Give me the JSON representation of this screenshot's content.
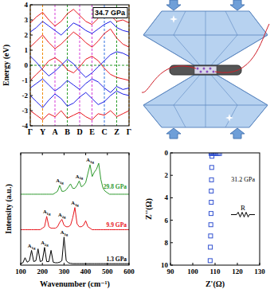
{
  "chart_data": [
    {
      "type": "line",
      "annotation": "34.7 GPa",
      "ylabel": "Energy (eV)",
      "x": [
        0,
        0.5,
        1,
        1.5,
        2,
        2.5,
        3,
        3.5,
        4,
        4.5,
        5,
        5.5,
        6,
        6.5,
        7,
        7.5,
        8
      ],
      "xlim": [
        0,
        8
      ],
      "xticks": [
        {
          "value": 0,
          "label": "Γ"
        },
        {
          "value": 1,
          "label": "Y"
        },
        {
          "value": 2,
          "label": "A"
        },
        {
          "value": 3,
          "label": "B"
        },
        {
          "value": 4,
          "label": "D"
        },
        {
          "value": 5,
          "label": "E"
        },
        {
          "value": 6,
          "label": "C"
        },
        {
          "value": 7,
          "label": "Z"
        },
        {
          "value": 8,
          "label": "Γ"
        }
      ],
      "ylim": [
        -4,
        4
      ],
      "yticks": [
        -4,
        -3,
        -2,
        -1,
        0,
        1,
        2,
        3,
        4
      ],
      "fermi_level": 0,
      "series": [
        {
          "color": "#e8141b",
          "values": [
            -3.0,
            -3.3,
            -3.6,
            -3.2,
            -3.4,
            -3.0,
            -3.5,
            -3.3,
            -3.1,
            -3.4,
            -3.6,
            -3.2,
            -3.3,
            -3.0,
            -3.4,
            -3.2,
            -3.0
          ]
        },
        {
          "color": "#e8141b",
          "values": [
            -1.0,
            -0.6,
            -0.2,
            0.3,
            0.5,
            0.2,
            -0.3,
            -0.5,
            -0.1,
            0.4,
            0.6,
            0.3,
            -0.2,
            -0.6,
            -0.8,
            -0.9,
            -1.0
          ]
        },
        {
          "color": "#e8141b",
          "values": [
            1.2,
            1.6,
            2.0,
            1.5,
            1.1,
            1.4,
            1.8,
            2.2,
            1.9,
            1.5,
            1.2,
            1.6,
            2.1,
            2.4,
            1.8,
            1.4,
            1.2
          ]
        },
        {
          "color": "#e8141b",
          "values": [
            2.8,
            3.2,
            3.5,
            3.0,
            2.6,
            2.9,
            3.4,
            3.7,
            3.3,
            2.9,
            2.7,
            3.1,
            3.6,
            3.3,
            2.9,
            3.0,
            2.8
          ]
        },
        {
          "color": "#1a1ae6",
          "values": [
            -2.0,
            -2.4,
            -2.8,
            -2.3,
            -1.9,
            -2.2,
            -2.7,
            -2.5,
            -2.1,
            -1.8,
            -2.2,
            -2.6,
            -2.4,
            -2.0,
            -1.7,
            -1.9,
            -2.0
          ]
        },
        {
          "color": "#1a1ae6",
          "values": [
            0.6,
            0.2,
            -0.3,
            -0.7,
            -0.4,
            0.0,
            0.4,
            0.1,
            -0.4,
            -0.8,
            -0.5,
            -0.1,
            0.3,
            0.7,
            0.9,
            0.8,
            0.6
          ]
        },
        {
          "color": "#1a1ae6",
          "values": [
            -1.5,
            -1.2,
            -0.9,
            -1.3,
            -1.7,
            -1.4,
            -1.0,
            -1.3,
            -1.6,
            -1.2,
            -0.9,
            -1.1,
            -1.5,
            -1.8,
            -1.4,
            -1.6,
            -1.5
          ]
        },
        {
          "color": "#1a1ae6",
          "values": [
            2.2,
            2.5,
            2.9,
            2.6,
            2.3,
            2.0,
            2.4,
            2.8,
            2.6,
            2.3,
            2.1,
            2.4,
            2.7,
            2.9,
            2.5,
            2.3,
            2.2
          ]
        }
      ]
    },
    {
      "type": "line",
      "xlabel": "Wavenumber (cm⁻¹)",
      "ylabel": "Intensity (a.u.)",
      "x": [
        100,
        110,
        120,
        130,
        140,
        150,
        160,
        170,
        180,
        190,
        200,
        210,
        220,
        230,
        240,
        250,
        260,
        270,
        280,
        290,
        300,
        310,
        320,
        330,
        340,
        350,
        360,
        370,
        380,
        390,
        400,
        410,
        420,
        430,
        440,
        450,
        460,
        470,
        480,
        490,
        500,
        510,
        520,
        530,
        540,
        550,
        560,
        570,
        580,
        590,
        600
      ],
      "xlim": [
        100,
        600
      ],
      "xticks": [
        100,
        200,
        300,
        400,
        500,
        600
      ],
      "ylim": [
        0,
        3.8
      ],
      "tick_labels": "x",
      "series": [
        {
          "name": "1.3 GPa",
          "color": "#000000",
          "values": [
            0.05,
            0.08,
            0.25,
            0.1,
            0.15,
            0.5,
            0.12,
            0.15,
            0.55,
            0.12,
            0.15,
            0.6,
            0.12,
            0.12,
            0.5,
            0.1,
            0.08,
            0.08,
            0.1,
            0.15,
            0.95,
            0.15,
            0.08,
            0.06,
            0.05,
            0.05,
            0.05,
            0.05,
            0.05,
            0.05,
            0.05,
            0.05,
            0.05,
            0.05,
            0.05,
            0.05,
            0.05,
            0.05,
            0.05,
            0.05,
            0.05,
            0.05,
            0.05,
            0.05,
            0.05,
            0.05,
            0.05,
            0.05,
            0.05,
            0.05,
            0.05
          ]
        },
        {
          "name": "9.9 GPa",
          "color": "#e8141b",
          "values": [
            1.2,
            1.2,
            1.2,
            1.2,
            1.2,
            1.2,
            1.2,
            1.2,
            1.2,
            1.2,
            1.25,
            1.3,
            1.65,
            1.3,
            1.25,
            1.25,
            1.25,
            1.3,
            1.45,
            1.55,
            1.35,
            1.3,
            1.3,
            1.35,
            1.6,
            1.95,
            1.4,
            1.3,
            1.3,
            1.35,
            1.5,
            1.3,
            1.25,
            1.2,
            1.2,
            1.2,
            1.2,
            1.2,
            1.2,
            1.2,
            1.2,
            1.2,
            1.2,
            1.2,
            1.2,
            1.2,
            1.2,
            1.2,
            1.2,
            1.2,
            1.2
          ]
        },
        {
          "name": "29.8 GPa",
          "color": "#2e9a2e",
          "values": [
            2.4,
            2.4,
            2.4,
            2.4,
            2.4,
            2.4,
            2.4,
            2.4,
            2.4,
            2.4,
            2.4,
            2.4,
            2.4,
            2.4,
            2.4,
            2.4,
            2.45,
            2.5,
            2.7,
            2.5,
            2.5,
            2.55,
            2.65,
            2.75,
            2.6,
            2.6,
            2.7,
            2.85,
            2.65,
            2.7,
            2.8,
            3.1,
            3.4,
            3.0,
            3.15,
            3.25,
            3.45,
            2.9,
            2.6,
            2.5,
            2.45,
            2.4,
            2.4,
            2.4,
            2.4,
            2.4,
            2.4,
            2.4,
            2.4,
            2.4,
            2.4
          ]
        }
      ],
      "annotations": [
        {
          "x": 150,
          "y": 0.6,
          "text": "A1g"
        },
        {
          "x": 210,
          "y": 0.7,
          "text": "A2g"
        },
        {
          "x": 300,
          "y": 1.05,
          "text": "A3g"
        },
        {
          "x": 220,
          "y": 1.75,
          "text": "A1g"
        },
        {
          "x": 290,
          "y": 1.65,
          "text": "A2g"
        },
        {
          "x": 350,
          "y": 2.05,
          "text": "A3g"
        },
        {
          "x": 280,
          "y": 2.8,
          "text": "A1g"
        },
        {
          "x": 370,
          "y": 2.95,
          "text": "A2g"
        },
        {
          "x": 420,
          "y": 3.5,
          "text": "A3g"
        }
      ]
    },
    {
      "type": "scatter",
      "annotation": "31.2 GPa",
      "circuit_label": "R",
      "xlabel": "Z'(Ω)",
      "ylabel": "Z''(Ω)",
      "marker": "square",
      "color": "#3050d0",
      "x": [
        108.2,
        108.7,
        109.2,
        109.8,
        110.5,
        111.3,
        112.0,
        108.6,
        108.5,
        108.4,
        108.3,
        108.3,
        108.2,
        108.1,
        108.0,
        107.9,
        107.8
      ],
      "values": [
        0.05,
        0.05,
        0.05,
        0.05,
        0.05,
        0.05,
        0.05,
        0.3,
        1.3,
        2.4,
        3.4,
        4.4,
        5.4,
        6.4,
        7.4,
        8.4,
        9.6
      ],
      "xlim": [
        90,
        130
      ],
      "xticks": [
        90,
        100,
        110,
        120,
        130
      ],
      "ylim": [
        10,
        0
      ],
      "yticks": [
        0,
        2,
        4,
        6,
        8,
        10
      ]
    }
  ]
}
